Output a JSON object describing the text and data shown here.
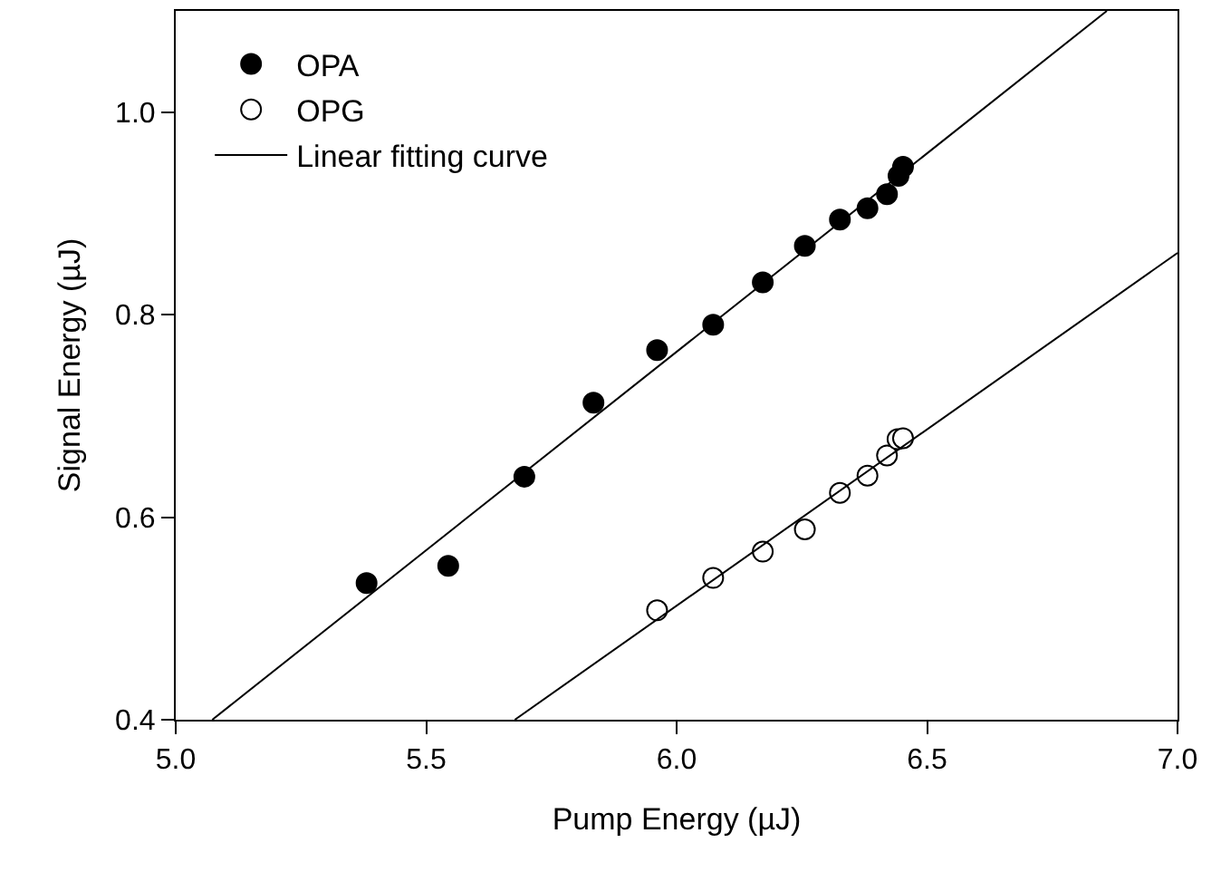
{
  "chart_data": {
    "type": "scatter",
    "xlabel": "Pump Energy (µJ)",
    "ylabel": "Signal Energy (µJ)",
    "xlim": [
      5.0,
      7.0
    ],
    "ylim": [
      0.4,
      1.1
    ],
    "xticks": [
      {
        "value": 5.0,
        "label": "5.0"
      },
      {
        "value": 5.5,
        "label": "5.5"
      },
      {
        "value": 6.0,
        "label": "6.0"
      },
      {
        "value": 6.5,
        "label": "6.5"
      },
      {
        "value": 7.0,
        "label": "7.0"
      }
    ],
    "yticks": [
      {
        "value": 0.4,
        "label": "0.4"
      },
      {
        "value": 0.6,
        "label": "0.6"
      },
      {
        "value": 0.8,
        "label": "0.8"
      },
      {
        "value": 1.0,
        "label": "1.0"
      }
    ],
    "legend": "top left",
    "series": [
      {
        "name": "OPA",
        "marker": "circle",
        "color": "#000000",
        "x": [
          5.381,
          5.544,
          5.696,
          5.834,
          5.961,
          6.073,
          6.172,
          6.256,
          6.326,
          6.381,
          6.42,
          6.443,
          6.452
        ],
        "values": [
          0.535,
          0.552,
          0.64,
          0.713,
          0.765,
          0.79,
          0.832,
          0.868,
          0.894,
          0.905,
          0.919,
          0.937,
          0.946
        ]
      },
      {
        "name": "OPG",
        "marker": "circle",
        "color": "#ffffff",
        "x": [
          5.961,
          6.073,
          6.172,
          6.256,
          6.326,
          6.381,
          6.42,
          6.441,
          6.452
        ],
        "values": [
          0.508,
          0.54,
          0.566,
          0.588,
          0.624,
          0.641,
          0.661,
          0.677,
          0.678
        ]
      },
      {
        "name": "Linear fitting curve",
        "type": "line",
        "color": "#000000",
        "line_style": "solid",
        "x": [
          5.073,
          6.859
        ],
        "values": [
          0.4,
          1.1
        ]
      },
      {
        "type": "line",
        "color": "#000000",
        "line_style": "solid",
        "x": [
          5.677,
          7.0
        ],
        "values": [
          0.4,
          0.861
        ]
      }
    ]
  }
}
